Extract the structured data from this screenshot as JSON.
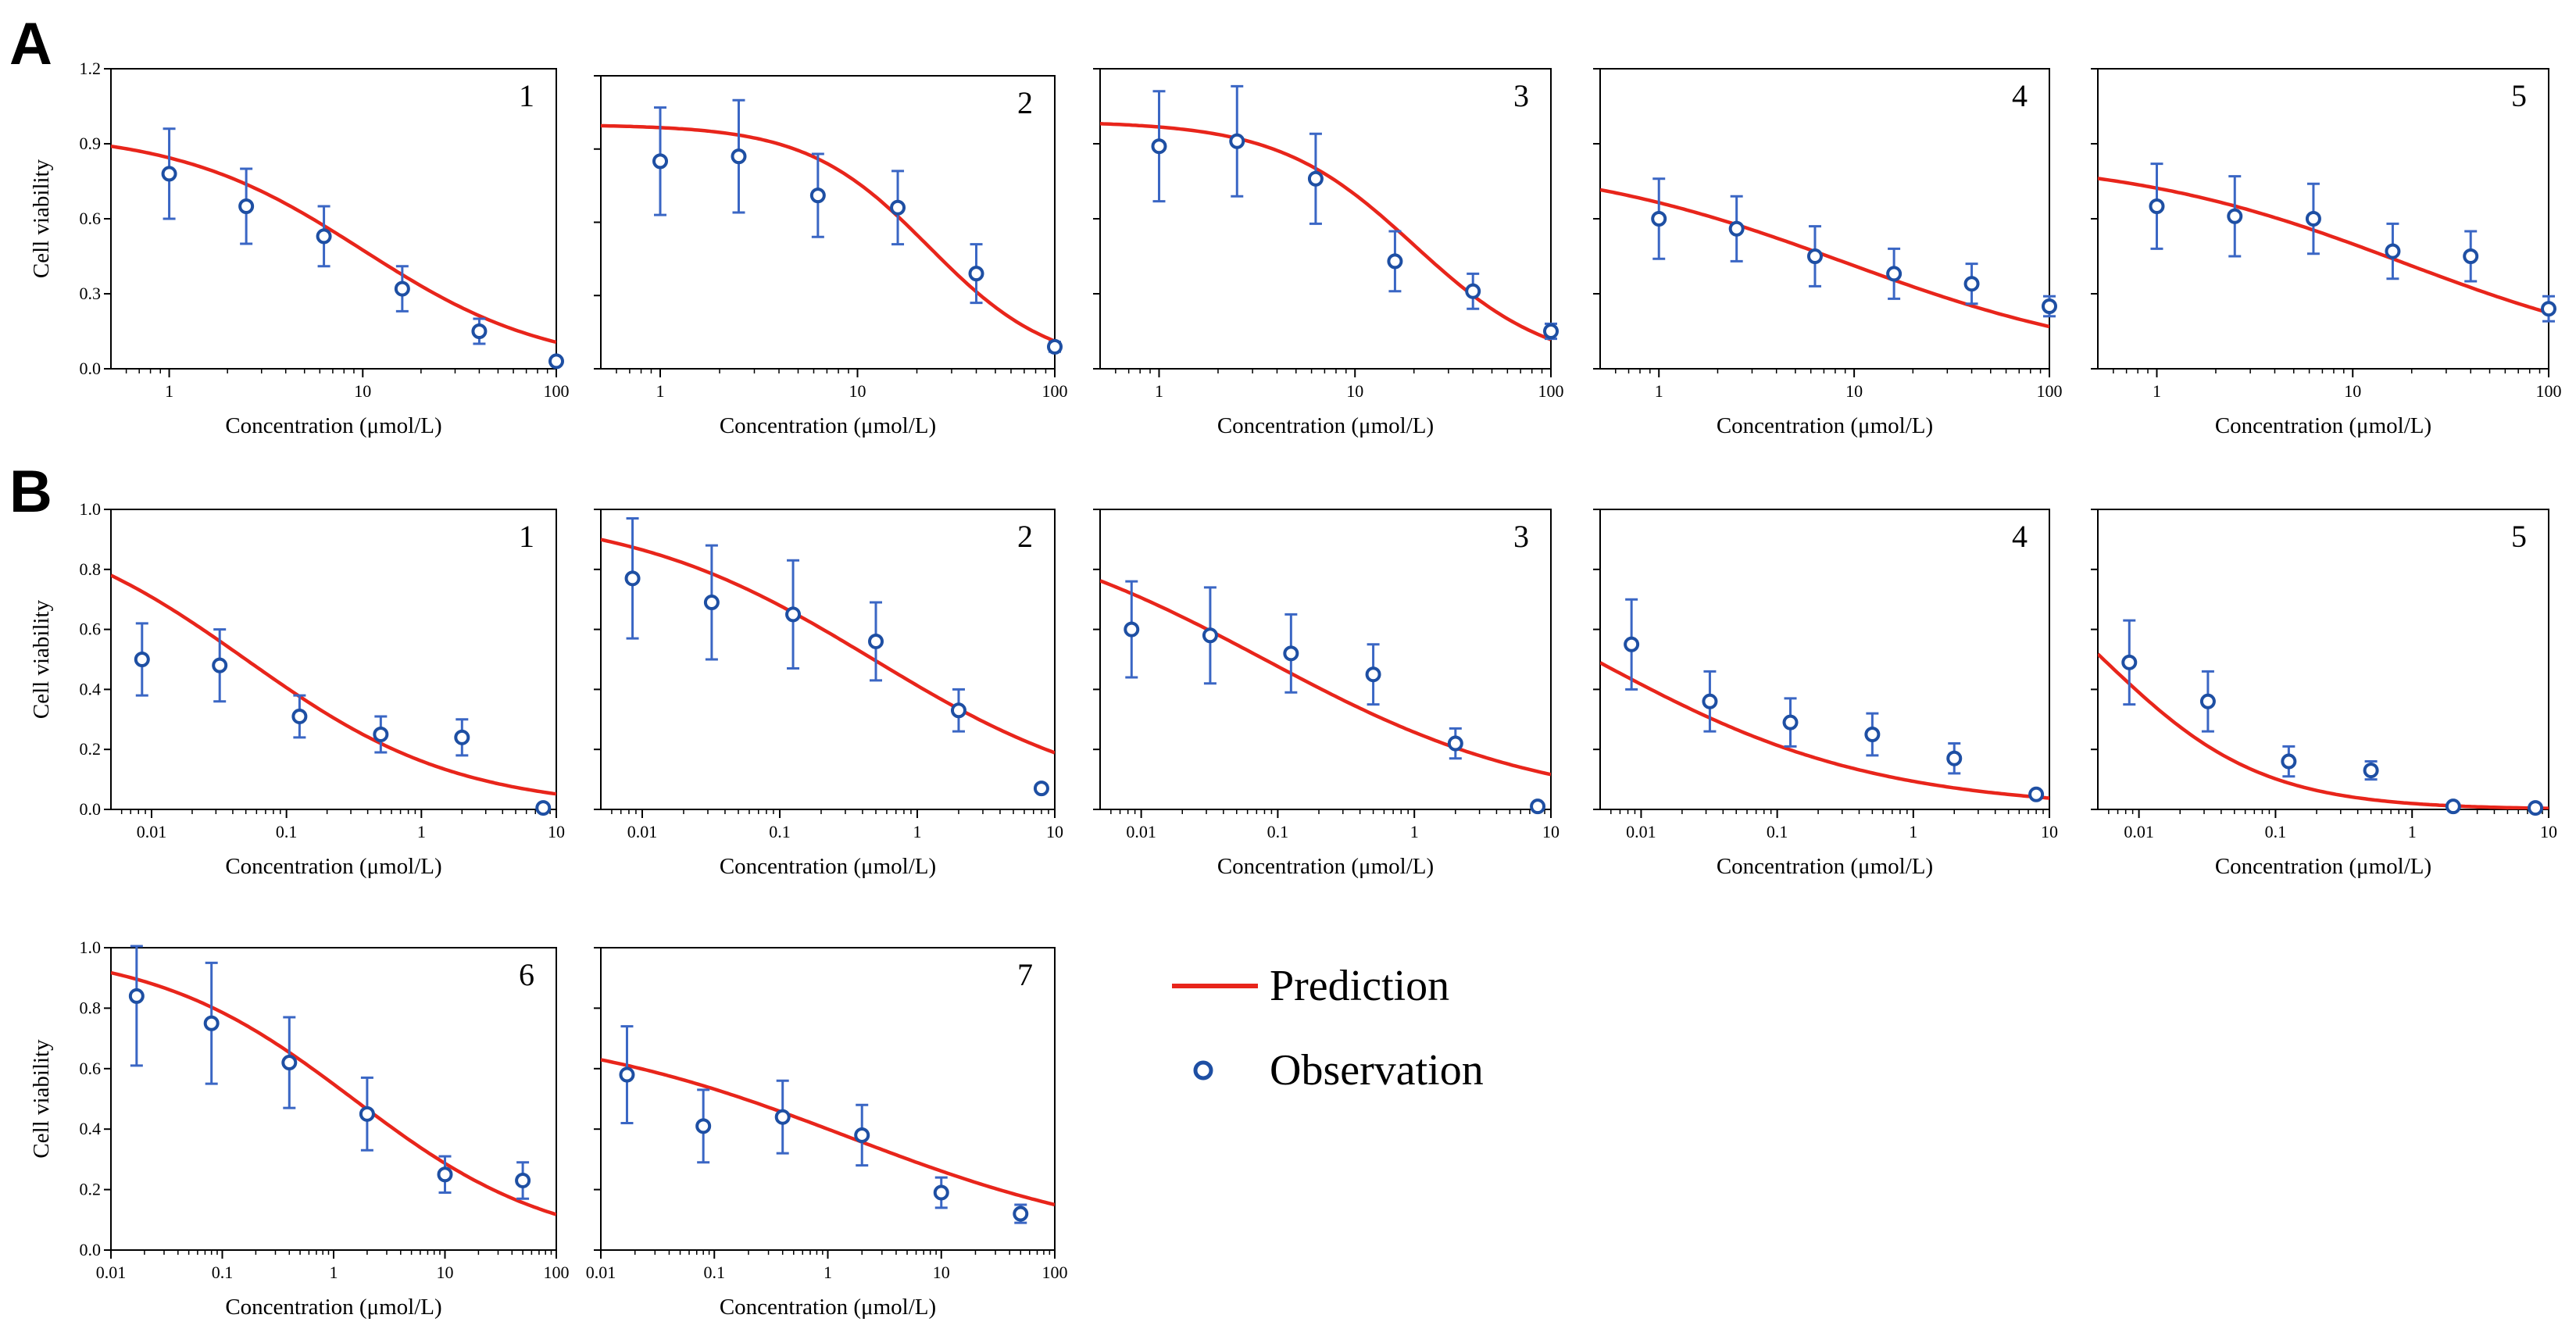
{
  "panel_labels": [
    "A",
    "B"
  ],
  "legend": {
    "prediction_label": "Prediction",
    "observation_label": "Observation",
    "prediction_color": "#e8251b",
    "observation_color": "#1e4fa3"
  },
  "colors": {
    "curve": "#e8251b",
    "points": "#1e4fa3",
    "errorbars": "#3a66c4",
    "axis": "#000000"
  },
  "chart_data": [
    {
      "id": "A1",
      "panel": "A",
      "number": "1",
      "type": "scatter",
      "xlabel": "Concentration (μmol/L)",
      "ylabel": "Cell viability",
      "xscale": "log",
      "xlim": [
        0.5,
        100
      ],
      "xticks": [
        1,
        10,
        100
      ],
      "xtick_labels": [
        "1",
        "10",
        "100"
      ],
      "ylim": [
        0,
        1.2
      ],
      "yticks": [
        0,
        0.3,
        0.6,
        0.9,
        1.2
      ],
      "ytick_labels": [
        "0.0",
        "0.3",
        "0.6",
        "0.9",
        "1.2"
      ],
      "observations": [
        {
          "x": 1,
          "y": 0.78,
          "err": 0.18
        },
        {
          "x": 2.5,
          "y": 0.65,
          "err": 0.15
        },
        {
          "x": 6.3,
          "y": 0.53,
          "err": 0.12
        },
        {
          "x": 16,
          "y": 0.32,
          "err": 0.09
        },
        {
          "x": 40,
          "y": 0.15,
          "err": 0.05
        },
        {
          "x": 100,
          "y": 0.03,
          "err": 0
        }
      ],
      "prediction": {
        "top": 0.95,
        "ic50": 10,
        "hill": 0.9
      }
    },
    {
      "id": "A2",
      "panel": "A",
      "number": "2",
      "type": "scatter",
      "xlabel": "Concentration (μmol/L)",
      "ylabel": "",
      "xscale": "log",
      "xlim": [
        0.5,
        100
      ],
      "xticks": [
        1,
        10,
        100
      ],
      "xtick_labels": [
        "1",
        "10",
        "100"
      ],
      "ylim": [
        0,
        1.2
      ],
      "yticks": [
        0,
        0.3,
        0.6,
        0.9,
        1.2
      ],
      "ytick_labels": [],
      "observations": [
        {
          "x": 1,
          "y": 0.85,
          "err": 0.22
        },
        {
          "x": 2.5,
          "y": 0.87,
          "err": 0.23
        },
        {
          "x": 6.3,
          "y": 0.71,
          "err": 0.17
        },
        {
          "x": 16,
          "y": 0.66,
          "err": 0.15
        },
        {
          "x": 40,
          "y": 0.39,
          "err": 0.12
        },
        {
          "x": 100,
          "y": 0.09,
          "err": 0.02
        }
      ],
      "prediction": {
        "top": 1.0,
        "ic50": 23,
        "hill": 1.4
      }
    },
    {
      "id": "A3",
      "panel": "A",
      "number": "3",
      "type": "scatter",
      "xlabel": "Concentration (μmol/L)",
      "ylabel": "",
      "xscale": "log",
      "xlim": [
        0.5,
        100
      ],
      "xticks": [
        1,
        10,
        100
      ],
      "xtick_labels": [
        "1",
        "10",
        "100"
      ],
      "ylim": [
        0,
        1.2
      ],
      "yticks": [
        0,
        0.3,
        0.6,
        0.9,
        1.2
      ],
      "ytick_labels": [],
      "observations": [
        {
          "x": 1,
          "y": 0.89,
          "err": 0.22
        },
        {
          "x": 2.5,
          "y": 0.91,
          "err": 0.22
        },
        {
          "x": 6.3,
          "y": 0.76,
          "err": 0.18
        },
        {
          "x": 16,
          "y": 0.43,
          "err": 0.12
        },
        {
          "x": 40,
          "y": 0.31,
          "err": 0.07
        },
        {
          "x": 100,
          "y": 0.15,
          "err": 0.03
        }
      ],
      "prediction": {
        "top": 0.99,
        "ic50": 20,
        "hill": 1.25
      }
    },
    {
      "id": "A4",
      "panel": "A",
      "number": "4",
      "type": "scatter",
      "xlabel": "Concentration (μmol/L)",
      "ylabel": "",
      "xscale": "log",
      "xlim": [
        0.5,
        100
      ],
      "xticks": [
        1,
        10,
        100
      ],
      "xtick_labels": [
        "1",
        "10",
        "100"
      ],
      "ylim": [
        0,
        1.2
      ],
      "yticks": [
        0,
        0.3,
        0.6,
        0.9,
        1.2
      ],
      "ytick_labels": [],
      "observations": [
        {
          "x": 1,
          "y": 0.6,
          "err": 0.16
        },
        {
          "x": 2.5,
          "y": 0.56,
          "err": 0.13
        },
        {
          "x": 6.3,
          "y": 0.45,
          "err": 0.12
        },
        {
          "x": 16,
          "y": 0.38,
          "err": 0.1
        },
        {
          "x": 40,
          "y": 0.34,
          "err": 0.08
        },
        {
          "x": 100,
          "y": 0.25,
          "err": 0.04
        }
      ],
      "prediction": {
        "top": 0.85,
        "ic50": 9,
        "hill": 0.58
      }
    },
    {
      "id": "A5",
      "panel": "A",
      "number": "5",
      "type": "scatter",
      "xlabel": "Concentration (μmol/L)",
      "ylabel": "",
      "xscale": "log",
      "xlim": [
        0.5,
        100
      ],
      "xticks": [
        1,
        10,
        100
      ],
      "xtick_labels": [
        "1",
        "10",
        "100"
      ],
      "ylim": [
        0,
        1.2
      ],
      "yticks": [
        0,
        0.3,
        0.6,
        0.9,
        1.2
      ],
      "ytick_labels": [],
      "observations": [
        {
          "x": 1,
          "y": 0.65,
          "err": 0.17
        },
        {
          "x": 2.5,
          "y": 0.61,
          "err": 0.16
        },
        {
          "x": 6.3,
          "y": 0.6,
          "err": 0.14
        },
        {
          "x": 16,
          "y": 0.47,
          "err": 0.11
        },
        {
          "x": 40,
          "y": 0.45,
          "err": 0.1
        },
        {
          "x": 100,
          "y": 0.24,
          "err": 0.05
        }
      ],
      "prediction": {
        "top": 0.85,
        "ic50": 18,
        "hill": 0.6
      }
    },
    {
      "id": "B1",
      "panel": "B",
      "number": "1",
      "type": "scatter",
      "xlabel": "Concentration (μmol/L)",
      "ylabel": "Cell viability",
      "xscale": "log",
      "xlim": [
        0.005,
        10
      ],
      "xticks": [
        0.01,
        0.1,
        1,
        10
      ],
      "xtick_labels": [
        "0.01",
        "0.1",
        "1",
        "10"
      ],
      "ylim": [
        0,
        1
      ],
      "yticks": [
        0,
        0.2,
        0.4,
        0.6,
        0.8,
        1
      ],
      "ytick_labels": [
        "0.0",
        "0.2",
        "0.4",
        "0.6",
        "0.8",
        "1.0"
      ],
      "observations": [
        {
          "x": 0.0085,
          "y": 0.5,
          "err": 0.12
        },
        {
          "x": 0.032,
          "y": 0.48,
          "err": 0.12
        },
        {
          "x": 0.125,
          "y": 0.31,
          "err": 0.07
        },
        {
          "x": 0.5,
          "y": 0.25,
          "err": 0.06
        },
        {
          "x": 2,
          "y": 0.24,
          "err": 0.06
        },
        {
          "x": 8,
          "y": 0.005,
          "err": 0
        }
      ],
      "prediction": {
        "top": 1.0,
        "ic50": 0.05,
        "hill": 0.55
      }
    },
    {
      "id": "B2",
      "panel": "B",
      "number": "2",
      "type": "scatter",
      "xlabel": "Concentration (μmol/L)",
      "ylabel": "",
      "xscale": "log",
      "xlim": [
        0.005,
        10
      ],
      "xticks": [
        0.01,
        0.1,
        1,
        10
      ],
      "xtick_labels": [
        "0.01",
        "0.1",
        "1",
        "10"
      ],
      "ylim": [
        0,
        1
      ],
      "yticks": [
        0,
        0.2,
        0.4,
        0.6,
        0.8,
        1
      ],
      "ytick_labels": [],
      "observations": [
        {
          "x": 0.0085,
          "y": 0.77,
          "err": 0.2
        },
        {
          "x": 0.032,
          "y": 0.69,
          "err": 0.19
        },
        {
          "x": 0.125,
          "y": 0.65,
          "err": 0.18
        },
        {
          "x": 0.5,
          "y": 0.56,
          "err": 0.13
        },
        {
          "x": 2,
          "y": 0.33,
          "err": 0.07
        },
        {
          "x": 8,
          "y": 0.07,
          "err": 0
        }
      ],
      "prediction": {
        "top": 1.0,
        "ic50": 0.48,
        "hill": 0.48
      }
    },
    {
      "id": "B3",
      "panel": "B",
      "number": "3",
      "type": "scatter",
      "xlabel": "Concentration (μmol/L)",
      "ylabel": "",
      "xscale": "log",
      "xlim": [
        0.005,
        10
      ],
      "xticks": [
        0.01,
        0.1,
        1,
        10
      ],
      "xtick_labels": [
        "0.01",
        "0.1",
        "1",
        "10"
      ],
      "ylim": [
        0,
        1
      ],
      "yticks": [
        0,
        0.2,
        0.4,
        0.6,
        0.8,
        1
      ],
      "ytick_labels": [],
      "observations": [
        {
          "x": 0.0085,
          "y": 0.6,
          "err": 0.16
        },
        {
          "x": 0.032,
          "y": 0.58,
          "err": 0.16
        },
        {
          "x": 0.125,
          "y": 0.52,
          "err": 0.13
        },
        {
          "x": 0.5,
          "y": 0.45,
          "err": 0.1
        },
        {
          "x": 2,
          "y": 0.22,
          "err": 0.05
        },
        {
          "x": 8,
          "y": 0.01,
          "err": 0
        }
      ],
      "prediction": {
        "top": 1.0,
        "ic50": 0.08,
        "hill": 0.42
      }
    },
    {
      "id": "B4",
      "panel": "B",
      "number": "4",
      "type": "scatter",
      "xlabel": "Concentration (μmol/L)",
      "ylabel": "",
      "xscale": "log",
      "xlim": [
        0.005,
        10
      ],
      "xticks": [
        0.01,
        0.1,
        1,
        10
      ],
      "xtick_labels": [
        "0.01",
        "0.1",
        "1",
        "10"
      ],
      "ylim": [
        0,
        1
      ],
      "yticks": [
        0,
        0.2,
        0.4,
        0.6,
        0.8,
        1
      ],
      "ytick_labels": [],
      "observations": [
        {
          "x": 0.0085,
          "y": 0.55,
          "err": 0.15
        },
        {
          "x": 0.032,
          "y": 0.36,
          "err": 0.1
        },
        {
          "x": 0.125,
          "y": 0.29,
          "err": 0.08
        },
        {
          "x": 0.5,
          "y": 0.25,
          "err": 0.07
        },
        {
          "x": 2,
          "y": 0.17,
          "err": 0.05
        },
        {
          "x": 8,
          "y": 0.05,
          "err": 0
        }
      ],
      "prediction": {
        "top": 1.0,
        "ic50": 0.0045,
        "hill": 0.42
      }
    },
    {
      "id": "B5",
      "panel": "B",
      "number": "5",
      "type": "scatter",
      "xlabel": "Concentration (μmol/L)",
      "ylabel": "",
      "xscale": "log",
      "xlim": [
        0.005,
        10
      ],
      "xticks": [
        0.01,
        0.1,
        1,
        10
      ],
      "xtick_labels": [
        "0.01",
        "0.1",
        "1",
        "10"
      ],
      "ylim": [
        0,
        1
      ],
      "yticks": [
        0,
        0.2,
        0.4,
        0.6,
        0.8,
        1
      ],
      "ytick_labels": [],
      "observations": [
        {
          "x": 0.0085,
          "y": 0.49,
          "err": 0.14
        },
        {
          "x": 0.032,
          "y": 0.36,
          "err": 0.1
        },
        {
          "x": 0.125,
          "y": 0.16,
          "err": 0.05
        },
        {
          "x": 0.5,
          "y": 0.13,
          "err": 0.03
        },
        {
          "x": 2,
          "y": 0.01,
          "err": 0
        },
        {
          "x": 8,
          "y": 0.005,
          "err": 0
        }
      ],
      "prediction": {
        "top": 1.0,
        "ic50": 0.0055,
        "hill": 0.75
      }
    },
    {
      "id": "B6",
      "panel": "B",
      "number": "6",
      "type": "scatter",
      "xlabel": "Concentration (μmol/L)",
      "ylabel": "Cell viability",
      "xscale": "log",
      "xlim": [
        0.01,
        100
      ],
      "xticks": [
        0.01,
        0.1,
        1,
        10,
        100
      ],
      "xtick_labels": [
        "0.01",
        "0.1",
        "1",
        "10",
        "100"
      ],
      "ylim": [
        0,
        1
      ],
      "yticks": [
        0,
        0.2,
        0.4,
        0.6,
        0.8,
        1
      ],
      "ytick_labels": [
        "0.0",
        "0.2",
        "0.4",
        "0.6",
        "0.8",
        "1.0"
      ],
      "observations": [
        {
          "x": 0.017,
          "y": 0.84,
          "err": 0.23
        },
        {
          "x": 0.08,
          "y": 0.75,
          "err": 0.2
        },
        {
          "x": 0.4,
          "y": 0.62,
          "err": 0.15
        },
        {
          "x": 2,
          "y": 0.45,
          "err": 0.12
        },
        {
          "x": 10,
          "y": 0.25,
          "err": 0.06
        },
        {
          "x": 50,
          "y": 0.23,
          "err": 0.06
        }
      ],
      "prediction": {
        "top": 1.0,
        "ic50": 1.5,
        "hill": 0.48
      }
    },
    {
      "id": "B7",
      "panel": "B",
      "number": "7",
      "type": "scatter",
      "xlabel": "Concentration (μmol/L)",
      "ylabel": "",
      "xscale": "log",
      "xlim": [
        0.01,
        100
      ],
      "xticks": [
        0.01,
        0.1,
        1,
        10,
        100
      ],
      "xtick_labels": [
        "0.01",
        "0.1",
        "1",
        "10",
        "100"
      ],
      "ylim": [
        0,
        1
      ],
      "yticks": [
        0,
        0.2,
        0.4,
        0.6,
        0.8,
        1
      ],
      "ytick_labels": [],
      "observations": [
        {
          "x": 0.017,
          "y": 0.58,
          "err": 0.16
        },
        {
          "x": 0.08,
          "y": 0.41,
          "err": 0.12
        },
        {
          "x": 0.4,
          "y": 0.44,
          "err": 0.12
        },
        {
          "x": 2,
          "y": 0.38,
          "err": 0.1
        },
        {
          "x": 10,
          "y": 0.19,
          "err": 0.05
        },
        {
          "x": 50,
          "y": 0.12,
          "err": 0.03
        }
      ],
      "prediction": {
        "top": 0.75,
        "ic50": 1.5,
        "hill": 0.33
      }
    }
  ]
}
